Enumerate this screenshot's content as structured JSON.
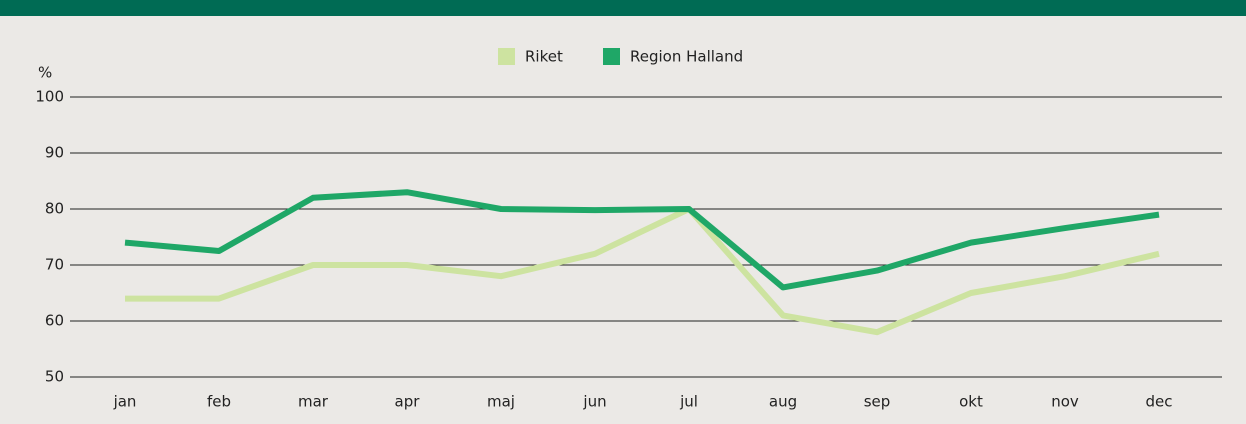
{
  "chart_data": {
    "type": "line",
    "y_label": "%",
    "categories": [
      "jan",
      "feb",
      "mar",
      "apr",
      "maj",
      "jun",
      "jul",
      "aug",
      "sep",
      "okt",
      "nov",
      "dec"
    ],
    "series": [
      {
        "name": "Riket",
        "color": "#cde3a0",
        "values": [
          64,
          64,
          70,
          70,
          68,
          72,
          80,
          61,
          58,
          65,
          68,
          72
        ]
      },
      {
        "name": "Region Halland",
        "color": "#1fa767",
        "values": [
          74,
          72.5,
          82,
          83,
          80,
          79.8,
          80,
          66,
          69,
          74,
          76.6,
          79
        ]
      }
    ],
    "ylim": [
      50,
      100
    ],
    "yticks": [
      50,
      60,
      70,
      80,
      90,
      100
    ],
    "grid": true,
    "legend": "top"
  }
}
